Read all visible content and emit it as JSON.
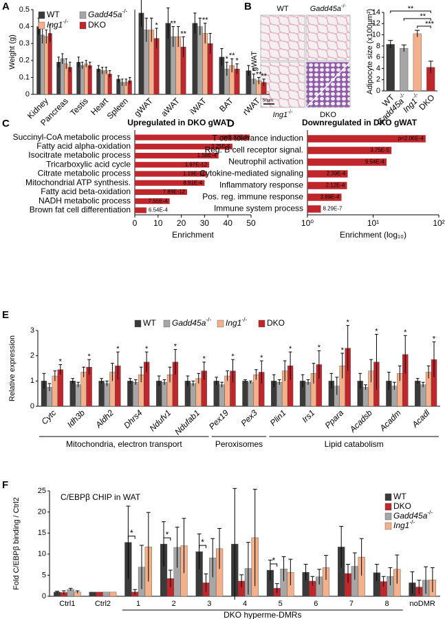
{
  "chart_data": [
    {
      "panel": "A",
      "type": "bar",
      "ylabel": "Weight (g)",
      "ylim": [
        0,
        0.5
      ],
      "yticks": [
        0,
        0.1,
        0.2,
        0.3,
        0.4,
        0.5
      ],
      "legend": "upper left",
      "categories": [
        "Kidney",
        "Pancreas",
        "Testis",
        "Heart",
        "Spleen",
        "gWAT",
        "aWAT",
        "iWAT",
        "BAT",
        "rWAT"
      ],
      "series": [
        {
          "name": "WT",
          "color": "#3a3a3a",
          "values": [
            0.4,
            0.19,
            0.19,
            0.15,
            0.09,
            0.48,
            0.42,
            0.42,
            0.22,
            0.14
          ],
          "errors": [
            0.05,
            0.03,
            0.03,
            0.02,
            0.02,
            0.08,
            0.09,
            0.06,
            0.05,
            0.03
          ],
          "significance": [
            null,
            null,
            null,
            null,
            null,
            null,
            null,
            null,
            null,
            null
          ]
        },
        {
          "name": "Gadd45a-/-",
          "color": "#a6a6a6",
          "values": [
            0.35,
            0.21,
            0.17,
            0.14,
            0.07,
            0.38,
            0.34,
            0.4,
            0.15,
            0.09
          ],
          "errors": [
            0.05,
            0.03,
            0.02,
            0.02,
            0.02,
            0.07,
            0.06,
            0.05,
            0.04,
            0.03
          ],
          "significance": [
            null,
            null,
            null,
            null,
            null,
            null,
            "**",
            null,
            "*",
            "*"
          ]
        },
        {
          "name": "Ing1-/-",
          "color": "#f4b08a",
          "values": [
            0.34,
            0.18,
            0.18,
            0.14,
            0.07,
            0.38,
            0.34,
            0.36,
            0.17,
            0.08
          ],
          "errors": [
            0.04,
            0.03,
            0.02,
            0.02,
            0.02,
            0.07,
            0.06,
            0.06,
            0.04,
            0.02
          ],
          "significance": [
            null,
            null,
            null,
            null,
            null,
            null,
            null,
            "**",
            "**",
            "**"
          ]
        },
        {
          "name": "DKO",
          "color": "#c0272d",
          "values": [
            0.36,
            0.16,
            0.17,
            0.12,
            0.08,
            0.33,
            0.28,
            0.3,
            0.15,
            0.07
          ],
          "errors": [
            0.05,
            0.03,
            0.02,
            0.02,
            0.02,
            0.06,
            0.06,
            0.06,
            0.03,
            0.02
          ],
          "significance": [
            null,
            null,
            null,
            null,
            null,
            "*",
            "**",
            null,
            "*",
            "**"
          ]
        }
      ]
    },
    {
      "panel": "B",
      "type": "bar",
      "images": {
        "columns": [
          "WT",
          "Gadd45a-/-"
        ],
        "bottom_labels": [
          "Ing1-/-",
          "DKO"
        ],
        "row_label": "gWAT",
        "scale_bar": "50µm"
      },
      "ylabel": "Adipocyte size (x100µm²)",
      "ylim": [
        0,
        14
      ],
      "yticks": [
        0,
        2,
        4,
        6,
        8,
        10,
        12,
        14
      ],
      "categories": [
        "WT",
        "Gadd45a-/-",
        "Ing1-/-",
        "DKO"
      ],
      "values": [
        8.3,
        7.6,
        10.2,
        4.2
      ],
      "errors": [
        0.7,
        0.6,
        0.6,
        1.1
      ],
      "colors": [
        "#3a3a3a",
        "#a6a6a6",
        "#f4b08a",
        "#c0272d"
      ],
      "comparisons": [
        {
          "from": "WT",
          "to": "DKO",
          "label": "**"
        },
        {
          "from": "Gadd45a-/-",
          "to": "DKO",
          "label": "**"
        },
        {
          "from": "Ing1-/-",
          "to": "DKO",
          "label": "***"
        }
      ]
    },
    {
      "panel": "C",
      "type": "hbar",
      "title": "Upregulated in DKO gWAT",
      "xlabel": "Enrichment",
      "xlim": [
        0,
        50
      ],
      "xticks": [
        0,
        10,
        20,
        30,
        40,
        50
      ],
      "color": "#c0272d",
      "categories": [
        "Succinyl-CoA metabolic process",
        "Fatty acid alpha-oxidation",
        "Isocitrate metabolic process",
        "Tricarboxylic acid cycle",
        "Citrate metabolic process",
        "Mitochondrial ATP synthesis.",
        "Fatty acid beta-oxidation",
        "NADH metabolic process",
        "Brown fat cell differentiation"
      ],
      "values": [
        49.4,
        42,
        36,
        32,
        31,
        30,
        22.5,
        15,
        5
      ],
      "pvalues": [
        "p=3.32E-9",
        "3.25E-5",
        "1.58E-4",
        "1.97E-12",
        "1.19E-11",
        "8.91E-4",
        "7.89E-12",
        "7.55E-4",
        "6.54E-4"
      ]
    },
    {
      "panel": "D",
      "type": "hbar",
      "title": "Downregulated in DKO gWAT",
      "xlabel": "Enrichment (log₁₀)",
      "xscale": "log",
      "xlim": [
        1,
        100
      ],
      "xticks": [
        {
          "value": 1,
          "label": "10⁰"
        },
        {
          "value": 10,
          "label": "10¹"
        },
        {
          "value": 100,
          "label": "10²"
        }
      ],
      "color": "#c0272d",
      "categories": [
        "T cell tolerance induction",
        "Reg. B cell receptor signal.",
        "Neutrophil activation",
        "Cytokine-mediated signaling",
        "Inflammatory response",
        "Pos. reg. immune response",
        "Immune system process"
      ],
      "values": [
        63,
        19,
        16,
        4.1,
        4.0,
        3.3,
        1.6
      ],
      "pvalues": [
        "p=2.06E-4",
        "3.75E-5",
        "9.54E-4",
        "2.39E-4",
        "2.12E-4",
        "3.99E-4",
        "8.29E-7"
      ]
    },
    {
      "panel": "E",
      "type": "bar",
      "ylabel": "Relative expression",
      "ylim": [
        0,
        3
      ],
      "yticks": [
        0,
        1,
        2,
        3
      ],
      "legend": "upper center",
      "italic_categories": true,
      "categories": [
        "Cytc",
        "Idh3b",
        "Aldh2",
        "Dhrs4",
        "Ndufv1",
        "Ndufab1",
        "Pex19",
        "Pex3",
        "Plin1",
        "Irs1",
        "Ppara",
        "Acadsb",
        "Acadm",
        "Acadl"
      ],
      "groups": [
        {
          "label": "Mitochondria, electron transport",
          "categories": [
            "Cytc",
            "Idh3b",
            "Aldh2",
            "Dhrs4",
            "Ndufv1",
            "Ndufab1"
          ]
        },
        {
          "label": "Peroxisomes",
          "categories": [
            "Pex19",
            "Pex3"
          ]
        },
        {
          "label": "Lipid catabolism",
          "categories": [
            "Plin1",
            "Irs1",
            "Ppara",
            "Acadsb",
            "Acadm",
            "Acadl"
          ]
        }
      ],
      "series": [
        {
          "name": "WT",
          "color": "#3a3a3a",
          "values": [
            1,
            1,
            1,
            1,
            1,
            1,
            1,
            1,
            1,
            1,
            1,
            1,
            1,
            1
          ],
          "errors": [
            0.3,
            0.1,
            0.1,
            0.1,
            0.2,
            0.2,
            0.15,
            0.05,
            0.25,
            0.25,
            0.3,
            0.3,
            0.35,
            0.1
          ],
          "significance": [
            null,
            null,
            null,
            null,
            null,
            null,
            null,
            null,
            null,
            null,
            null,
            null,
            null,
            null
          ]
        },
        {
          "name": "Gadd45a-/-",
          "color": "#a6a6a6",
          "values": [
            0.75,
            0.85,
            0.9,
            0.95,
            0.95,
            0.9,
            0.85,
            0.95,
            0.95,
            0.95,
            0.8,
            0.75,
            0.8,
            0.85
          ],
          "errors": [
            0.15,
            0.1,
            0.1,
            0.1,
            0.1,
            0.1,
            0.1,
            0.05,
            0.1,
            0.1,
            0.35,
            0.1,
            0.15,
            0.1
          ],
          "significance": [
            null,
            null,
            null,
            null,
            null,
            null,
            null,
            null,
            null,
            null,
            null,
            null,
            null,
            null
          ]
        },
        {
          "name": "Ing1-/-",
          "color": "#f4b08a",
          "values": [
            1.2,
            1.35,
            1.35,
            1.25,
            1.25,
            1.1,
            1.2,
            1.25,
            1.4,
            1.3,
            1.6,
            1.4,
            1.3,
            1.35
          ],
          "errors": [
            0.2,
            0.2,
            0.35,
            0.3,
            0.3,
            0.2,
            0.2,
            0.2,
            0.4,
            0.4,
            0.5,
            0.45,
            0.3,
            0.25
          ],
          "significance": [
            null,
            null,
            null,
            null,
            null,
            null,
            null,
            null,
            null,
            null,
            "*",
            null,
            null,
            null
          ]
        },
        {
          "name": "DKO",
          "color": "#c0272d",
          "values": [
            1.45,
            1.55,
            1.6,
            1.75,
            1.75,
            1.4,
            1.4,
            1.35,
            1.6,
            1.65,
            2.3,
            1.75,
            2.05,
            1.85
          ],
          "errors": [
            0.2,
            0.3,
            0.55,
            0.4,
            0.5,
            0.35,
            0.45,
            0.45,
            0.55,
            0.55,
            0.9,
            1.1,
            0.75,
            0.7
          ],
          "significance": [
            "*",
            "*",
            "*",
            "*",
            "*",
            "*",
            "*",
            "*",
            "*",
            "*",
            "*",
            "*",
            "*",
            "*"
          ]
        }
      ]
    },
    {
      "panel": "F",
      "type": "bar",
      "title": "C/EBPβ CHIP in WAT",
      "ylabel": "Fold C/EBPβ binding / Ctrl2",
      "ylim": [
        0,
        25
      ],
      "yticks": [
        0,
        5,
        10,
        15,
        20,
        25
      ],
      "legend": "upper right",
      "categories": [
        "Ctrl1",
        "Ctrl2",
        "1",
        "2",
        "3",
        "4",
        "5",
        "6",
        "7",
        "8",
        "noDMR"
      ],
      "groups": [
        {
          "label": "DKO hyperme-DMRs",
          "categories": [
            "1",
            "2",
            "3",
            "4",
            "5",
            "6",
            "7",
            "8"
          ]
        }
      ],
      "series": [
        {
          "name": "WT",
          "color": "#3a3a3a",
          "values": [
            1.0,
            1.0,
            12.8,
            12.4,
            10.6,
            12.4,
            6.2,
            5.7,
            11.7,
            5.6,
            3.2
          ],
          "errors": [
            0.2,
            0,
            8.6,
            5.3,
            4.2,
            13.2,
            2.4,
            1.9,
            4.9,
            2.0,
            2.6
          ]
        },
        {
          "name": "DKO",
          "color": "#c0272d",
          "values": [
            0.9,
            1.0,
            1.0,
            4.2,
            3.2,
            3.6,
            1.9,
            3.6,
            5.4,
            3.5,
            2.2
          ],
          "errors": [
            0.4,
            0,
            0.6,
            2.0,
            2.1,
            1.5,
            1.1,
            1.1,
            2.2,
            1.2,
            1.6
          ]
        },
        {
          "name": "Gadd45a-/-",
          "color": "#a6a6a6",
          "values": [
            1.6,
            1.0,
            6.9,
            11.6,
            9.1,
            6.6,
            6.5,
            4.6,
            7.1,
            4.7,
            3.8
          ],
          "errors": [
            0.3,
            0,
            5.2,
            4.8,
            4.6,
            6.2,
            2.9,
            1.8,
            3.2,
            2.1,
            3.2
          ]
        },
        {
          "name": "Ing1-/-",
          "color": "#f4b08a",
          "values": [
            1.0,
            1.0,
            11.7,
            12.0,
            11.3,
            13.9,
            5.7,
            6.8,
            9.3,
            6.4,
            3.9
          ],
          "errors": [
            0.3,
            0,
            8.2,
            6.5,
            4.8,
            11.5,
            3.1,
            2.9,
            4.4,
            3.4,
            2.9
          ]
        }
      ],
      "comparisons": [
        {
          "category": "1",
          "series": [
            "WT",
            "DKO"
          ],
          "label": "*"
        },
        {
          "category": "2",
          "series": [
            "WT",
            "DKO"
          ],
          "label": "*"
        },
        {
          "category": "3",
          "series": [
            "WT",
            "DKO"
          ],
          "label": "*"
        },
        {
          "category": "5",
          "series": [
            "WT",
            "DKO"
          ],
          "label": "*"
        }
      ]
    }
  ]
}
